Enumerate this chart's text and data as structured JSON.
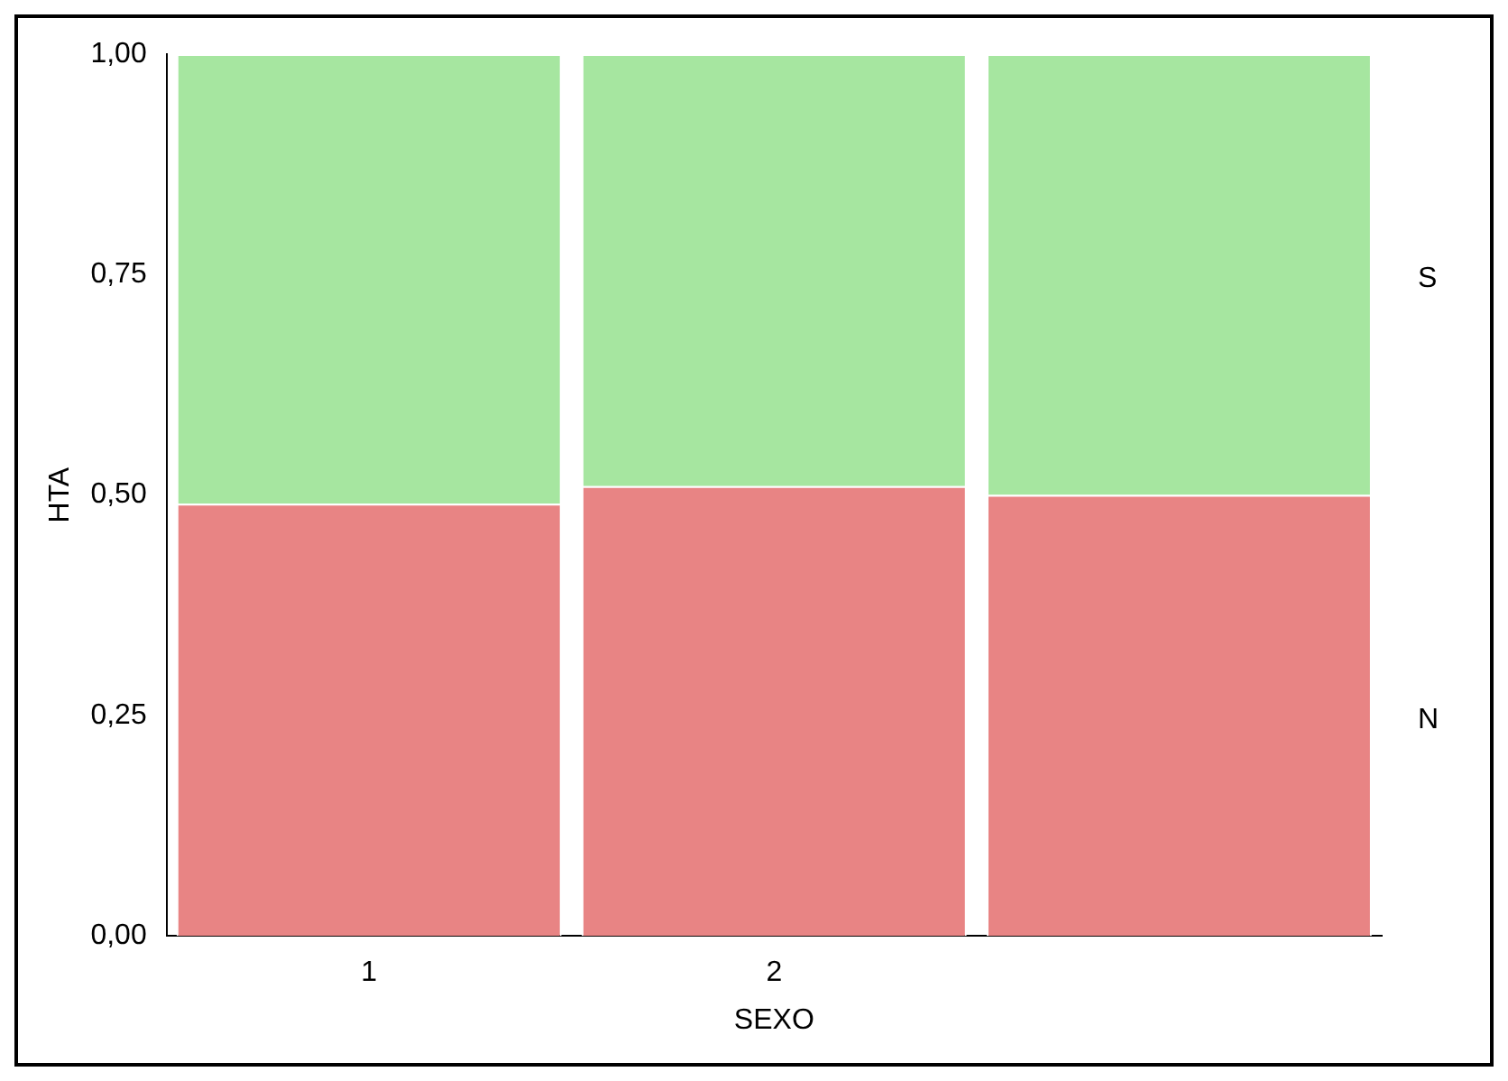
{
  "chart_data": {
    "type": "bar",
    "xlabel": "SEXO",
    "ylabel": "HTA",
    "categories": [
      "1",
      "2",
      null
    ],
    "stacked": true,
    "legend": false,
    "grid": false,
    "series": [
      {
        "name": "N",
        "color": "#e88484",
        "values": [
          0.49,
          0.51,
          0.5
        ]
      },
      {
        "name": "S",
        "color": "#a6e6a0",
        "values": [
          0.51,
          0.49,
          0.5
        ]
      }
    ],
    "ylim": [
      0,
      1
    ],
    "yticks": [
      {
        "value": 0,
        "label": "0,00"
      },
      {
        "value": 0.25,
        "label": "0,25"
      },
      {
        "value": 0.5,
        "label": "0,50"
      },
      {
        "value": 0.75,
        "label": "0,75"
      },
      {
        "value": 1,
        "label": "1,00"
      }
    ]
  }
}
